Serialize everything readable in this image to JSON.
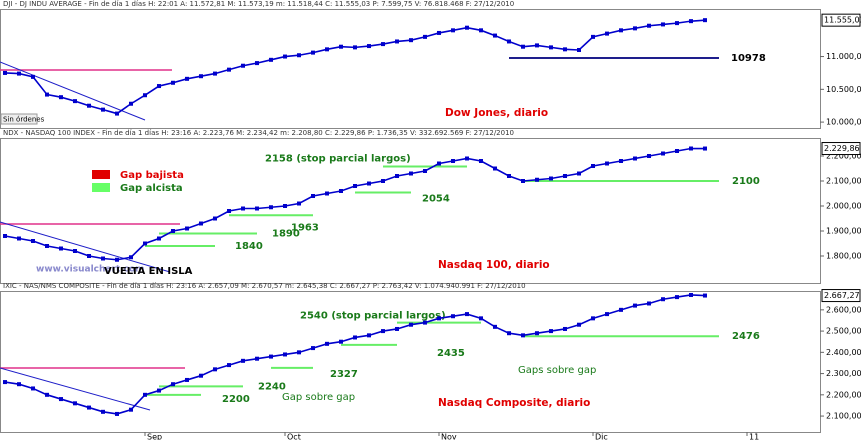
{
  "x_axis": {
    "categories": [
      null,
      null,
      null,
      null,
      null,
      null,
      null,
      null,
      null,
      null,
      "Sep",
      null,
      null,
      null,
      null,
      null,
      null,
      null,
      null,
      null,
      "Oct",
      null,
      null,
      null,
      null,
      null,
      null,
      null,
      null,
      null,
      null,
      "Nov",
      null,
      null,
      null,
      null,
      null,
      null,
      null,
      null,
      null,
      null,
      "Dic",
      null,
      null,
      null,
      null,
      null,
      null,
      null,
      null,
      null,
      null,
      "11"
    ]
  },
  "legend": [
    {
      "name": "Gap bajista",
      "color": "#e00000"
    },
    {
      "name": "Gap alcista",
      "color": "#66ff66"
    }
  ],
  "watermark": "www.visualchart.com",
  "status": "Sin órdenes",
  "chart_data": [
    {
      "type": "line",
      "header": "DJI - DJ INDU AVERAGE - Fin de día 1 días H: 22:01 A: 11.572,81 M: 11.573,19 m: 11.518,44 C: 11.555,03 P: 7.599,75 V: 76.818.468 F: 27/12/2010",
      "title": "Dow Jones, diario",
      "color": "#0000cc",
      "values": [
        10750,
        10740,
        10690,
        10420,
        10380,
        10320,
        10250,
        10190,
        10130,
        10280,
        10410,
        10550,
        10600,
        10660,
        10700,
        10740,
        10800,
        10860,
        10900,
        10950,
        11000,
        11020,
        11060,
        11110,
        11150,
        11140,
        11160,
        11190,
        11230,
        11250,
        11300,
        11360,
        11400,
        11440,
        11400,
        11320,
        11230,
        11150,
        11170,
        11140,
        11110,
        11100,
        11300,
        11350,
        11400,
        11430,
        11470,
        11490,
        11510,
        11540,
        11555.03,
        null,
        null,
        null
      ],
      "ylim": [
        9910,
        11710
      ],
      "yticks": [
        {
          "value": 10000,
          "label": "10.000,00"
        },
        {
          "value": 10500,
          "label": "10.500,00"
        },
        {
          "value": 11000,
          "label": "11.000,00"
        }
      ],
      "last_label": {
        "value": 11555.03,
        "label": "11.555,03"
      },
      "levels": [
        {
          "value": 10978,
          "label": "10978"
        }
      ]
    },
    {
      "type": "line",
      "header": "NDX - NASDAQ 100 INDEX - Fin de día 1 días H: 23:16 A: 2.223,76 M: 2.234,42 m: 2.208,80 C: 2.229,86 P: 1.736,35 V: 332.692.569 F: 27/12/2010",
      "title": "Nasdaq 100, diario",
      "color": "#0000cc",
      "values": [
        1880,
        1870,
        1860,
        1840,
        1830,
        1820,
        1800,
        1790,
        1785,
        1795,
        1850,
        1870,
        1900,
        1910,
        1930,
        1950,
        1980,
        1990,
        1990,
        1995,
        2000,
        2010,
        2040,
        2050,
        2060,
        2080,
        2090,
        2100,
        2120,
        2130,
        2140,
        2170,
        2180,
        2190,
        2180,
        2150,
        2120,
        2100,
        2105,
        2110,
        2120,
        2130,
        2160,
        2170,
        2180,
        2190,
        2200,
        2210,
        2220,
        2230,
        2229.86,
        null,
        null,
        null
      ],
      "ylim": [
        1692,
        2268
      ],
      "yticks": [
        {
          "value": 1800,
          "label": "1.800,00"
        },
        {
          "value": 1900,
          "label": "1.900,00"
        },
        {
          "value": 2000,
          "label": "2.000,00"
        },
        {
          "value": 2100,
          "label": "2.100,00"
        },
        {
          "value": 2200,
          "label": "2.200,00"
        }
      ],
      "last_label": {
        "value": 2229.86,
        "label": "2.229,86"
      },
      "levels": [
        {
          "value": 2158,
          "label": "2158 (stop parcial largos)"
        },
        {
          "value": 2054,
          "label": "2054"
        },
        {
          "value": 1963,
          "label": "1963"
        },
        {
          "value": 1890,
          "label": "1890"
        },
        {
          "value": 1840,
          "label": "1840"
        },
        {
          "value": 2100,
          "label": "2100"
        }
      ],
      "note": "VUELTA EN ISLA"
    },
    {
      "type": "line",
      "header": "IXIC - NAS/NMS COMPOSITE - Fin de día 1 días H: 23:16 A: 2.657,09 M: 2.670,57 m: 2.645,38 C: 2.667,27 P: 2.763,42 V: 1.074.940.991 F: 27/12/2010",
      "title": "Nasdaq Composite, diario",
      "color": "#0000cc",
      "values": [
        2260,
        2250,
        2230,
        2200,
        2180,
        2160,
        2140,
        2120,
        2110,
        2130,
        2200,
        2220,
        2250,
        2270,
        2290,
        2320,
        2340,
        2360,
        2370,
        2380,
        2390,
        2400,
        2420,
        2440,
        2450,
        2470,
        2480,
        2500,
        2510,
        2530,
        2540,
        2560,
        2570,
        2580,
        2560,
        2520,
        2490,
        2480,
        2490,
        2500,
        2510,
        2530,
        2560,
        2580,
        2600,
        2620,
        2630,
        2650,
        2660,
        2670,
        2667.27,
        null,
        null,
        null
      ],
      "ylim": [
        2025,
        2684
      ],
      "yticks": [
        {
          "value": 2100,
          "label": "2.100,00"
        },
        {
          "value": 2200,
          "label": "2.200,00"
        },
        {
          "value": 2300,
          "label": "2.300,00"
        },
        {
          "value": 2400,
          "label": "2.400,00"
        },
        {
          "value": 2500,
          "label": "2.500,00"
        },
        {
          "value": 2600,
          "label": "2.600,00"
        }
      ],
      "last_label": {
        "value": 2667.27,
        "label": "2.667,27"
      },
      "levels": [
        {
          "value": 2540,
          "label": "2540 (stop parcial largos)"
        },
        {
          "value": 2435,
          "label": "2435"
        },
        {
          "value": 2327,
          "label": "2327"
        },
        {
          "value": 2240,
          "label": "2240"
        },
        {
          "value": 2200,
          "label": "2200"
        },
        {
          "value": 2476,
          "label": "2476"
        }
      ],
      "notes": [
        "Gap sobre gap",
        "Gaps sobre gap"
      ]
    }
  ]
}
